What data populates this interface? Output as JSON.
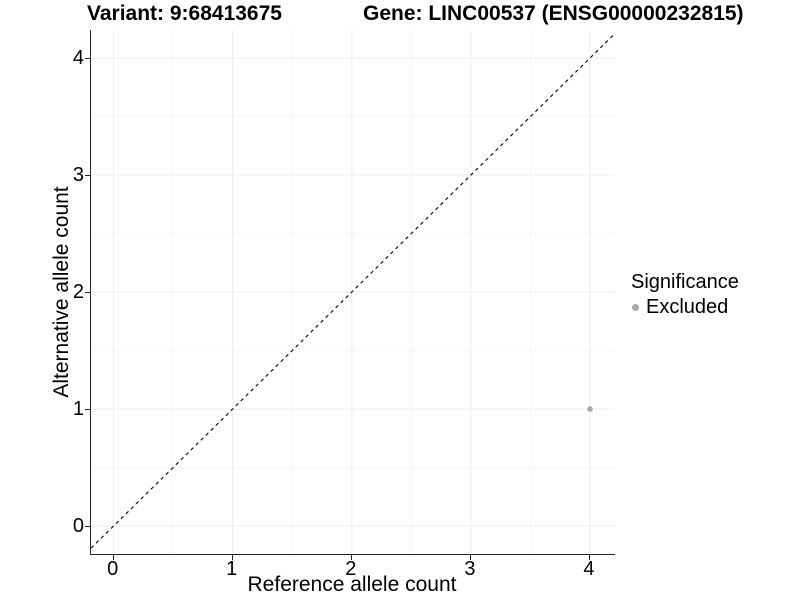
{
  "chart_data": {
    "type": "scatter",
    "titles": {
      "variant": "Variant: 9:68413675",
      "gene": "Gene: LINC00537 (ENSG00000232815)"
    },
    "xlabel": "Reference allele count",
    "ylabel": "Alternative allele count",
    "x_ticks": [
      0,
      1,
      2,
      3,
      4
    ],
    "y_ticks": [
      0,
      1,
      2,
      3,
      4
    ],
    "x_minor_ticks": [
      0.5,
      1.5,
      2.5,
      3.5
    ],
    "y_minor_ticks": [
      0.5,
      1.5,
      2.5,
      3.5
    ],
    "x_domain": [
      -0.19,
      4.21
    ],
    "y_domain": [
      -0.24,
      4.24
    ],
    "grid": true,
    "identity_line": {
      "slope": 1,
      "intercept": 0,
      "style": "dashed"
    },
    "points": [
      {
        "x": 4,
        "y": 1,
        "significance": "Excluded"
      }
    ],
    "legend": {
      "title": "Significance",
      "position": "right",
      "items": [
        {
          "label": "Excluded",
          "color": "#aaaaaa"
        }
      ]
    }
  },
  "colors": {
    "background": "#ffffff",
    "grid_major": "#ececec",
    "grid_minor": "#f6f6f6",
    "axis_line": "#262626",
    "tick_mark": "#262626",
    "identity_line": "#000000",
    "point": "#aaaaaa",
    "text": "#000000"
  }
}
